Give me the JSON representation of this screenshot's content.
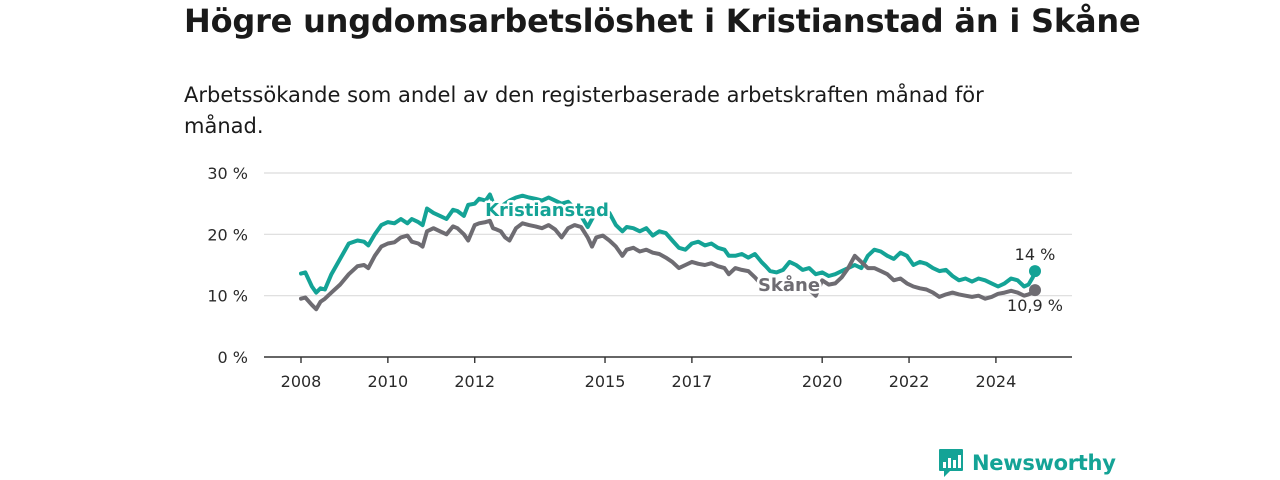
{
  "header": {
    "title": "Högre ungdomsarbetslöshet i Kristianstad än i Skåne",
    "subtitle": "Arbetssökande som andel av den registerbaserade arbetskraften månad för månad."
  },
  "logo": {
    "text": "Newsworthy",
    "icon": "bar-chart-icon",
    "color": "#14a396"
  },
  "chart_data": {
    "type": "line",
    "title": "Högre ungdomsarbetslöshet i Kristianstad än i Skåne",
    "subtitle": "Arbetssökande som andel av den registerbaserade arbetskraften månad för månad.",
    "xlabel": "",
    "ylabel": "",
    "ylim": [
      0,
      30
    ],
    "xlim": [
      2008,
      2024.9
    ],
    "grid": true,
    "y_ticks": [
      {
        "value": 0,
        "label": "0 %"
      },
      {
        "value": 10,
        "label": "10 %"
      },
      {
        "value": 20,
        "label": "20 %"
      },
      {
        "value": 30,
        "label": "30 %"
      }
    ],
    "x_ticks": [
      {
        "value": 2008,
        "label": "2008"
      },
      {
        "value": 2010,
        "label": "2010"
      },
      {
        "value": 2012,
        "label": "2012"
      },
      {
        "value": 2015,
        "label": "2015"
      },
      {
        "value": 2017,
        "label": "2017"
      },
      {
        "value": 2020,
        "label": "2020"
      },
      {
        "value": 2022,
        "label": "2022"
      },
      {
        "value": 2024,
        "label": "2024"
      }
    ],
    "series": [
      {
        "name": "Kristianstad",
        "color": "#14a396",
        "end_label": "14 %",
        "points": [
          [
            2008.0,
            13.6
          ],
          [
            2008.1,
            13.8
          ],
          [
            2008.25,
            11.5
          ],
          [
            2008.35,
            10.5
          ],
          [
            2008.45,
            11.2
          ],
          [
            2008.55,
            11.0
          ],
          [
            2008.7,
            13.5
          ],
          [
            2008.9,
            16.0
          ],
          [
            2009.1,
            18.5
          ],
          [
            2009.3,
            19.0
          ],
          [
            2009.45,
            18.8
          ],
          [
            2009.55,
            18.2
          ],
          [
            2009.7,
            20.0
          ],
          [
            2009.85,
            21.5
          ],
          [
            2010.0,
            22.0
          ],
          [
            2010.15,
            21.8
          ],
          [
            2010.3,
            22.5
          ],
          [
            2010.45,
            21.8
          ],
          [
            2010.55,
            22.5
          ],
          [
            2010.7,
            22.0
          ],
          [
            2010.8,
            21.5
          ],
          [
            2010.9,
            24.2
          ],
          [
            2011.05,
            23.5
          ],
          [
            2011.2,
            23.0
          ],
          [
            2011.35,
            22.5
          ],
          [
            2011.5,
            24.0
          ],
          [
            2011.6,
            23.8
          ],
          [
            2011.75,
            23.0
          ],
          [
            2011.85,
            24.8
          ],
          [
            2012.0,
            25.0
          ],
          [
            2012.1,
            25.8
          ],
          [
            2012.25,
            25.5
          ],
          [
            2012.35,
            26.5
          ],
          [
            2012.42,
            25.2
          ],
          [
            2012.5,
            24.8
          ],
          [
            2012.6,
            24.5
          ],
          [
            2012.7,
            25.0
          ],
          [
            2012.8,
            25.5
          ],
          [
            2012.95,
            26.0
          ],
          [
            2013.1,
            26.3
          ],
          [
            2013.25,
            26.0
          ],
          [
            2013.4,
            25.8
          ],
          [
            2013.55,
            25.5
          ],
          [
            2013.7,
            26.0
          ],
          [
            2013.85,
            25.5
          ],
          [
            2014.0,
            25.0
          ],
          [
            2014.15,
            25.3
          ],
          [
            2014.3,
            24.2
          ],
          [
            2014.45,
            23.0
          ],
          [
            2014.6,
            21.2
          ],
          [
            2014.7,
            22.5
          ],
          [
            2014.8,
            23.5
          ],
          [
            2014.95,
            23.8
          ],
          [
            2015.1,
            23.5
          ],
          [
            2015.25,
            21.5
          ],
          [
            2015.4,
            20.5
          ],
          [
            2015.5,
            21.2
          ],
          [
            2015.65,
            21.0
          ],
          [
            2015.8,
            20.5
          ],
          [
            2015.95,
            21.0
          ],
          [
            2016.1,
            19.8
          ],
          [
            2016.25,
            20.5
          ],
          [
            2016.4,
            20.2
          ],
          [
            2016.55,
            19.0
          ],
          [
            2016.7,
            17.8
          ],
          [
            2016.85,
            17.5
          ],
          [
            2017.0,
            18.5
          ],
          [
            2017.15,
            18.8
          ],
          [
            2017.3,
            18.2
          ],
          [
            2017.45,
            18.5
          ],
          [
            2017.6,
            17.8
          ],
          [
            2017.75,
            17.5
          ],
          [
            2017.85,
            16.5
          ],
          [
            2018.0,
            16.5
          ],
          [
            2018.15,
            16.8
          ],
          [
            2018.3,
            16.2
          ],
          [
            2018.45,
            16.8
          ],
          [
            2018.6,
            15.5
          ],
          [
            2018.7,
            14.8
          ],
          [
            2018.8,
            14.0
          ],
          [
            2018.95,
            13.8
          ],
          [
            2019.1,
            14.2
          ],
          [
            2019.25,
            15.5
          ],
          [
            2019.4,
            15.0
          ],
          [
            2019.55,
            14.2
          ],
          [
            2019.7,
            14.5
          ],
          [
            2019.85,
            13.5
          ],
          [
            2020.0,
            13.8
          ],
          [
            2020.15,
            13.2
          ],
          [
            2020.3,
            13.5
          ],
          [
            2020.45,
            14.0
          ],
          [
            2020.6,
            14.5
          ],
          [
            2020.75,
            15.0
          ],
          [
            2020.9,
            14.5
          ],
          [
            2021.05,
            16.5
          ],
          [
            2021.2,
            17.5
          ],
          [
            2021.35,
            17.2
          ],
          [
            2021.5,
            16.5
          ],
          [
            2021.65,
            16.0
          ],
          [
            2021.8,
            17.0
          ],
          [
            2021.95,
            16.5
          ],
          [
            2022.1,
            15.0
          ],
          [
            2022.25,
            15.5
          ],
          [
            2022.4,
            15.2
          ],
          [
            2022.55,
            14.5
          ],
          [
            2022.7,
            14.0
          ],
          [
            2022.85,
            14.2
          ],
          [
            2023.0,
            13.2
          ],
          [
            2023.15,
            12.5
          ],
          [
            2023.3,
            12.8
          ],
          [
            2023.45,
            12.3
          ],
          [
            2023.6,
            12.8
          ],
          [
            2023.75,
            12.5
          ],
          [
            2023.9,
            12.0
          ],
          [
            2024.05,
            11.5
          ],
          [
            2024.2,
            12.0
          ],
          [
            2024.35,
            12.8
          ],
          [
            2024.5,
            12.5
          ],
          [
            2024.65,
            11.5
          ],
          [
            2024.75,
            11.8
          ],
          [
            2024.85,
            13.0
          ],
          [
            2024.9,
            14.0
          ]
        ]
      },
      {
        "name": "Skåne",
        "color": "#6e6c72",
        "end_label": "10,9 %",
        "points": [
          [
            2008.0,
            9.5
          ],
          [
            2008.1,
            9.7
          ],
          [
            2008.25,
            8.5
          ],
          [
            2008.35,
            7.8
          ],
          [
            2008.45,
            9.0
          ],
          [
            2008.55,
            9.5
          ],
          [
            2008.7,
            10.5
          ],
          [
            2008.9,
            11.8
          ],
          [
            2009.1,
            13.5
          ],
          [
            2009.3,
            14.8
          ],
          [
            2009.45,
            15.0
          ],
          [
            2009.55,
            14.5
          ],
          [
            2009.7,
            16.5
          ],
          [
            2009.85,
            18.0
          ],
          [
            2010.0,
            18.5
          ],
          [
            2010.15,
            18.7
          ],
          [
            2010.3,
            19.5
          ],
          [
            2010.45,
            19.8
          ],
          [
            2010.55,
            18.8
          ],
          [
            2010.7,
            18.5
          ],
          [
            2010.8,
            18.0
          ],
          [
            2010.9,
            20.5
          ],
          [
            2011.05,
            21.0
          ],
          [
            2011.2,
            20.5
          ],
          [
            2011.35,
            20.0
          ],
          [
            2011.5,
            21.3
          ],
          [
            2011.6,
            21.0
          ],
          [
            2011.75,
            20.0
          ],
          [
            2011.85,
            19.0
          ],
          [
            2012.0,
            21.5
          ],
          [
            2012.1,
            21.8
          ],
          [
            2012.25,
            22.0
          ],
          [
            2012.35,
            22.2
          ],
          [
            2012.42,
            21.0
          ],
          [
            2012.5,
            20.8
          ],
          [
            2012.6,
            20.5
          ],
          [
            2012.7,
            19.5
          ],
          [
            2012.8,
            19.0
          ],
          [
            2012.95,
            21.0
          ],
          [
            2013.1,
            21.8
          ],
          [
            2013.25,
            21.5
          ],
          [
            2013.4,
            21.3
          ],
          [
            2013.55,
            21.0
          ],
          [
            2013.7,
            21.5
          ],
          [
            2013.85,
            20.8
          ],
          [
            2014.0,
            19.5
          ],
          [
            2014.15,
            21.0
          ],
          [
            2014.3,
            21.5
          ],
          [
            2014.45,
            21.2
          ],
          [
            2014.6,
            19.5
          ],
          [
            2014.7,
            18.0
          ],
          [
            2014.8,
            19.5
          ],
          [
            2014.95,
            19.8
          ],
          [
            2015.1,
            19.0
          ],
          [
            2015.25,
            18.0
          ],
          [
            2015.4,
            16.5
          ],
          [
            2015.5,
            17.5
          ],
          [
            2015.65,
            17.8
          ],
          [
            2015.8,
            17.2
          ],
          [
            2015.95,
            17.5
          ],
          [
            2016.1,
            17.0
          ],
          [
            2016.25,
            16.8
          ],
          [
            2016.4,
            16.2
          ],
          [
            2016.55,
            15.5
          ],
          [
            2016.7,
            14.5
          ],
          [
            2016.85,
            15.0
          ],
          [
            2017.0,
            15.5
          ],
          [
            2017.15,
            15.2
          ],
          [
            2017.3,
            15.0
          ],
          [
            2017.45,
            15.3
          ],
          [
            2017.6,
            14.8
          ],
          [
            2017.75,
            14.5
          ],
          [
            2017.85,
            13.5
          ],
          [
            2018.0,
            14.5
          ],
          [
            2018.15,
            14.2
          ],
          [
            2018.3,
            14.0
          ],
          [
            2018.45,
            13.0
          ],
          [
            2018.6,
            11.8
          ],
          [
            2018.75,
            11.5
          ],
          [
            2018.95,
            11.3
          ],
          [
            2019.1,
            11.0
          ],
          [
            2019.25,
            11.8
          ],
          [
            2019.4,
            11.5
          ],
          [
            2019.55,
            10.8
          ],
          [
            2019.7,
            11.0
          ],
          [
            2019.85,
            10.0
          ],
          [
            2020.0,
            12.5
          ],
          [
            2020.15,
            11.8
          ],
          [
            2020.3,
            12.0
          ],
          [
            2020.45,
            13.0
          ],
          [
            2020.6,
            14.5
          ],
          [
            2020.75,
            16.5
          ],
          [
            2020.9,
            15.5
          ],
          [
            2021.05,
            14.5
          ],
          [
            2021.2,
            14.5
          ],
          [
            2021.35,
            14.0
          ],
          [
            2021.5,
            13.5
          ],
          [
            2021.65,
            12.5
          ],
          [
            2021.8,
            12.8
          ],
          [
            2021.95,
            12.0
          ],
          [
            2022.1,
            11.5
          ],
          [
            2022.25,
            11.2
          ],
          [
            2022.4,
            11.0
          ],
          [
            2022.55,
            10.5
          ],
          [
            2022.7,
            9.8
          ],
          [
            2022.85,
            10.2
          ],
          [
            2023.0,
            10.5
          ],
          [
            2023.15,
            10.2
          ],
          [
            2023.3,
            10.0
          ],
          [
            2023.45,
            9.8
          ],
          [
            2023.6,
            10.0
          ],
          [
            2023.75,
            9.5
          ],
          [
            2023.9,
            9.8
          ],
          [
            2024.05,
            10.3
          ],
          [
            2024.2,
            10.5
          ],
          [
            2024.35,
            10.8
          ],
          [
            2024.5,
            10.5
          ],
          [
            2024.65,
            10.0
          ],
          [
            2024.75,
            10.2
          ],
          [
            2024.85,
            10.5
          ],
          [
            2024.9,
            10.9
          ]
        ]
      }
    ]
  }
}
